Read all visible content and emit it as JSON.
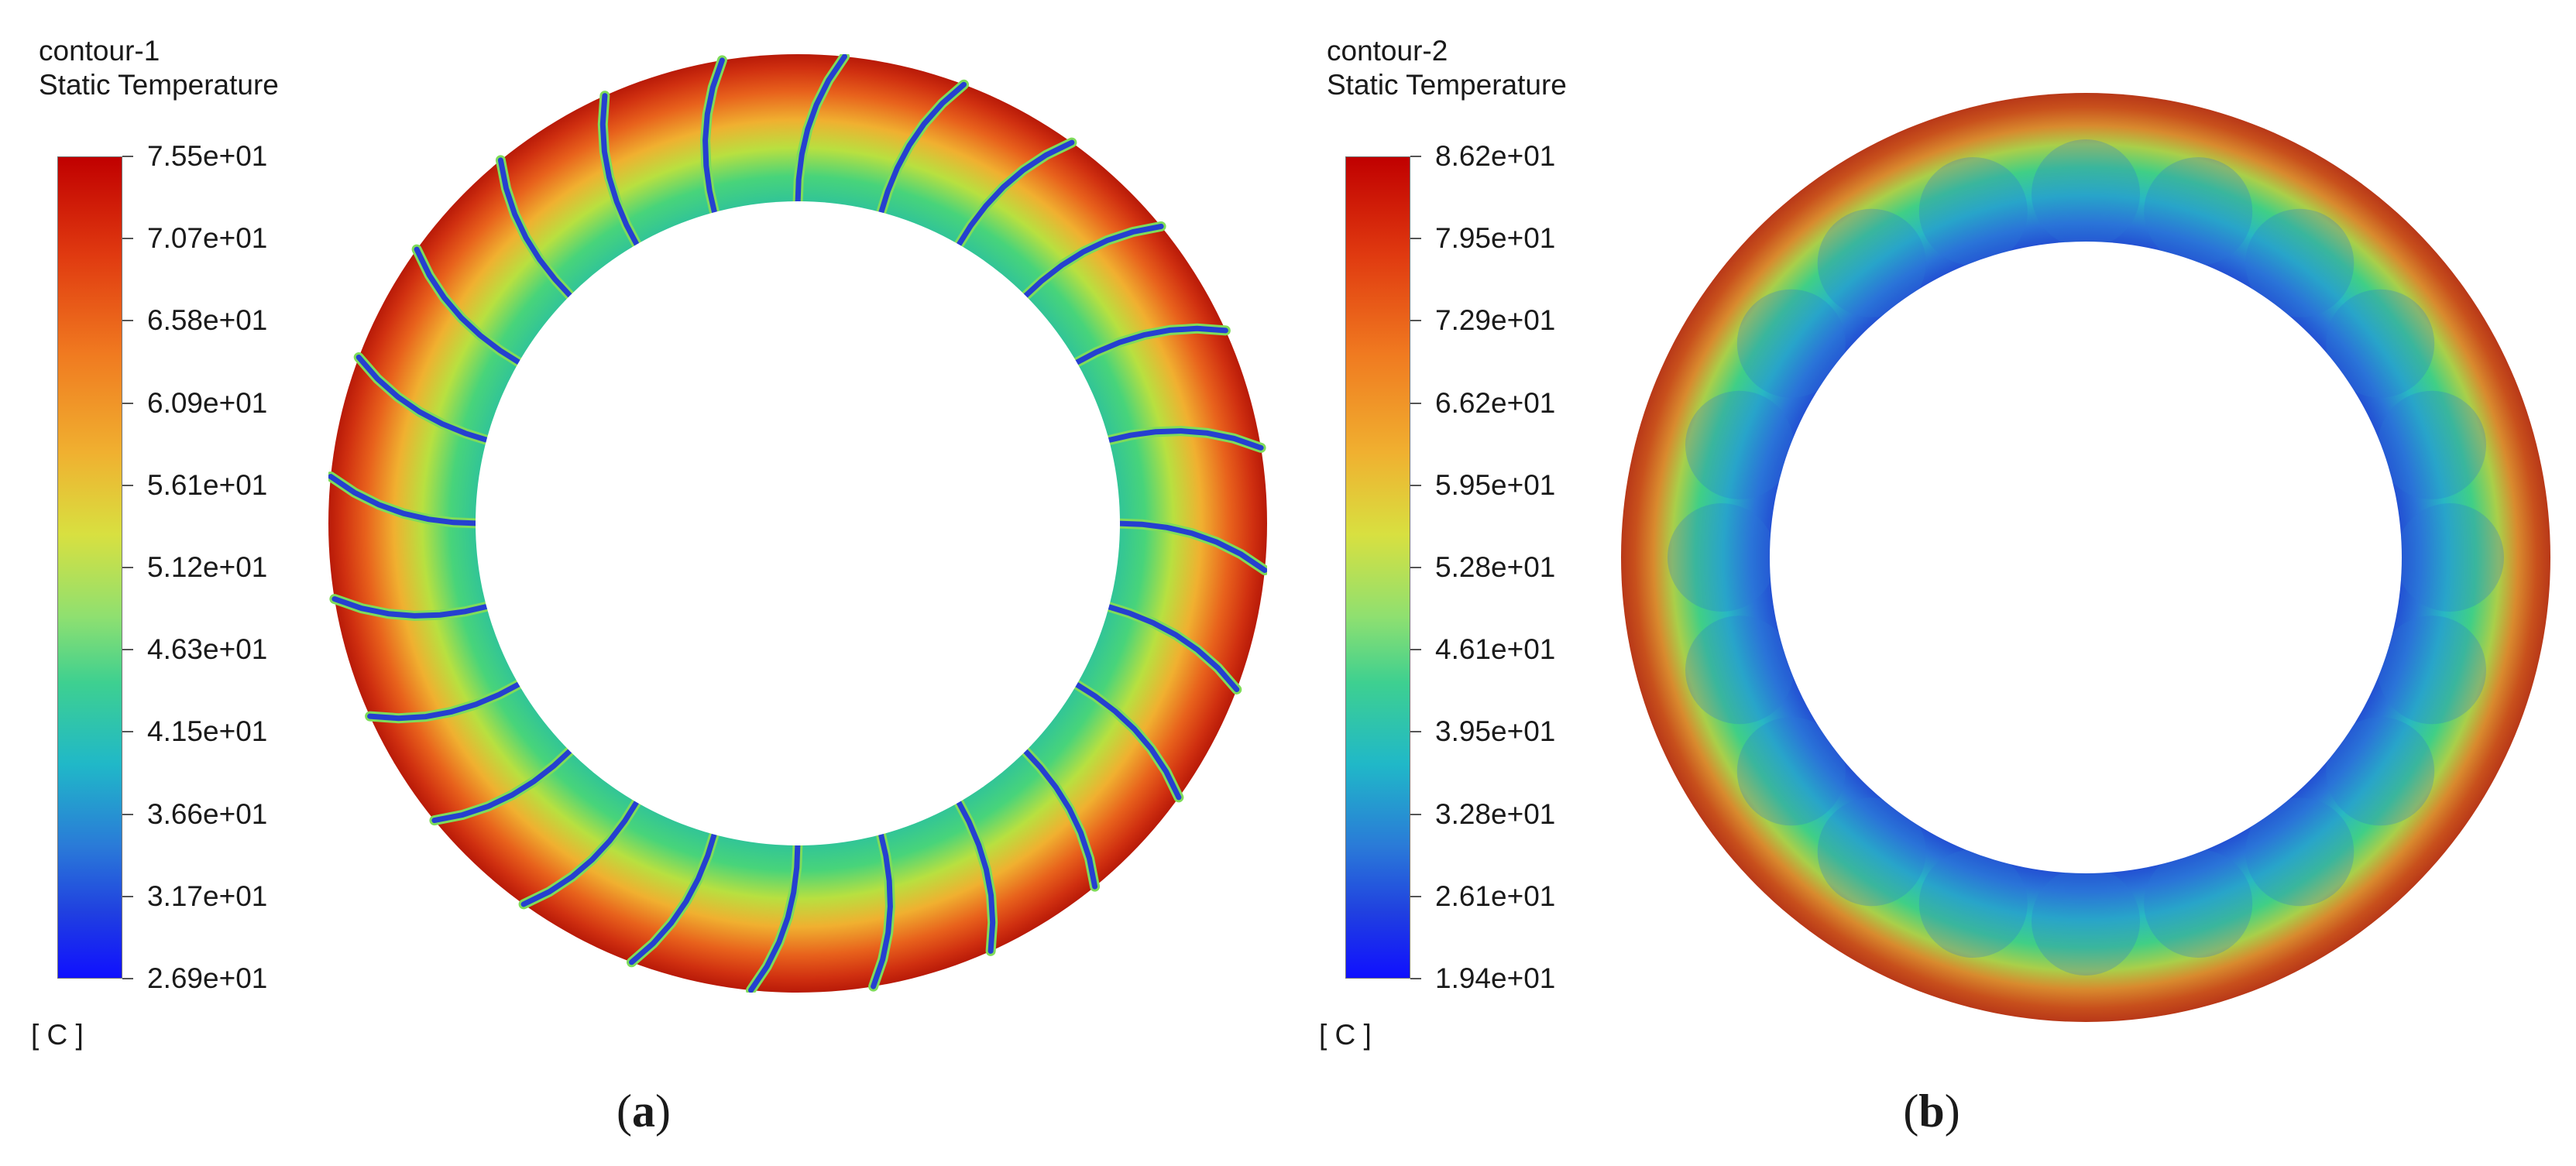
{
  "panels": [
    {
      "title": "contour-1",
      "variable": "Static Temperature",
      "ticks": [
        "7.55e+01",
        "7.07e+01",
        "6.58e+01",
        "6.09e+01",
        "5.61e+01",
        "5.12e+01",
        "4.63e+01",
        "4.15e+01",
        "3.66e+01",
        "3.17e+01",
        "2.69e+01"
      ],
      "unit": "[ C ]",
      "caption": "a",
      "blade_count": 24
    },
    {
      "title": "contour-2",
      "variable": "Static Temperature",
      "ticks": [
        "8.62e+01",
        "7.95e+01",
        "7.29e+01",
        "6.62e+01",
        "5.95e+01",
        "5.28e+01",
        "4.61e+01",
        "3.95e+01",
        "3.28e+01",
        "2.61e+01",
        "1.94e+01"
      ],
      "unit": "[ C ]",
      "caption": "b"
    }
  ],
  "colors": {
    "hot": "#c41a0a",
    "mid": "#3fd07a",
    "cold": "#1a3fd8"
  }
}
